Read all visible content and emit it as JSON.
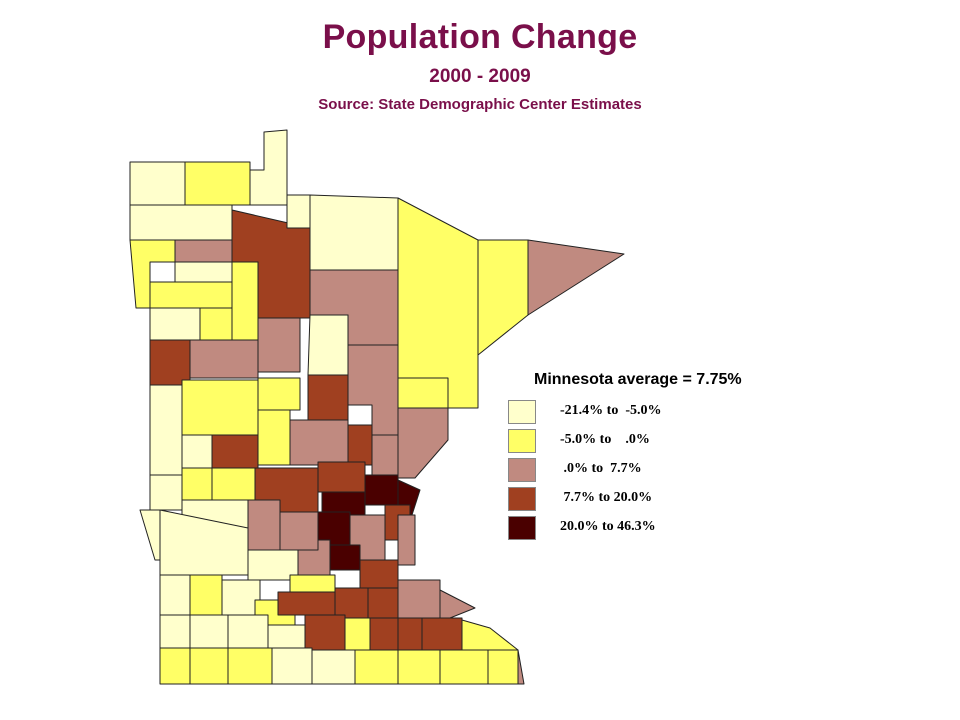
{
  "title": "Population Change",
  "subtitle": "2000 - 2009",
  "source": "Source: State Demographic Center Estimates",
  "legend": {
    "title": "Minnesota average = 7.75%",
    "classes": [
      {
        "label": "-21.4% to  -5.0%",
        "color": "#ffffcc"
      },
      {
        "label": "-5.0% to    .0%",
        "color": "#ffff66"
      },
      {
        "label": " .0% to  7.7%",
        "color": "#c08a80"
      },
      {
        "label": " 7.7% to 20.0%",
        "color": "#a04020"
      },
      {
        "label": "20.0% to 46.3%",
        "color": "#4a0000"
      }
    ]
  },
  "map_features": {
    "region": "Minnesota counties",
    "class_colors": [
      "#ffffcc",
      "#ffff66",
      "#c08a80",
      "#a04020",
      "#4a0000"
    ]
  }
}
